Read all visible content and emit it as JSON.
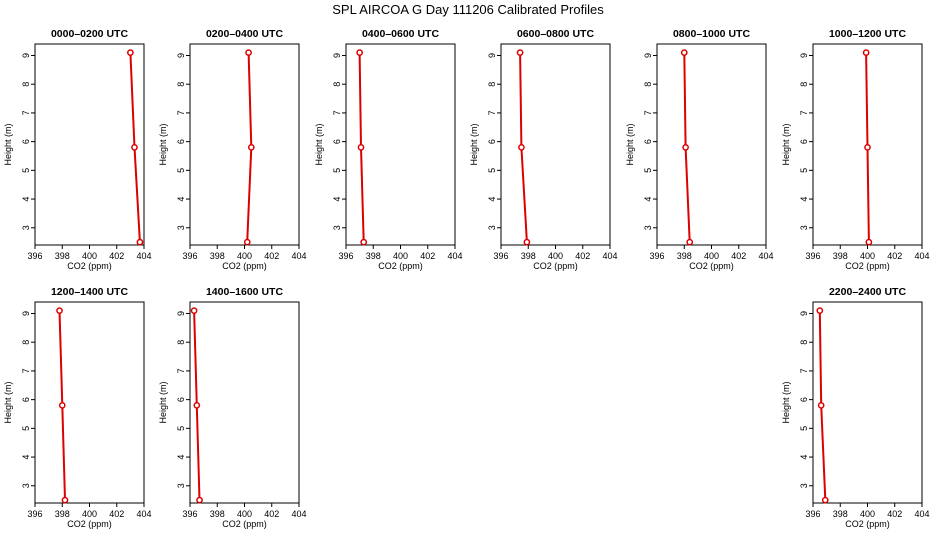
{
  "title": "SPL AIRCOA G  Day 111206  Calibrated Profiles",
  "colors": {
    "series": "#dd0000",
    "axis": "#000000"
  },
  "chart_data": [
    {
      "type": "line",
      "title": "0000–0200 UTC",
      "xlabel": "CO2 (ppm)",
      "ylabel": "Height (m)",
      "xlim": [
        396,
        404
      ],
      "ylim": [
        2.4,
        9.4
      ],
      "xticks": [
        396,
        398,
        400,
        402,
        404
      ],
      "yticks": [
        3,
        4,
        5,
        6,
        7,
        8,
        9
      ],
      "points": [
        {
          "x": 403.7,
          "y": 2.5
        },
        {
          "x": 403.3,
          "y": 5.8
        },
        {
          "x": 403.0,
          "y": 9.1
        }
      ]
    },
    {
      "type": "line",
      "title": "0200–0400 UTC",
      "xlabel": "CO2 (ppm)",
      "ylabel": "Height (m)",
      "xlim": [
        396,
        404
      ],
      "ylim": [
        2.4,
        9.4
      ],
      "xticks": [
        396,
        398,
        400,
        402,
        404
      ],
      "yticks": [
        3,
        4,
        5,
        6,
        7,
        8,
        9
      ],
      "points": [
        {
          "x": 400.2,
          "y": 2.5
        },
        {
          "x": 400.5,
          "y": 5.8
        },
        {
          "x": 400.3,
          "y": 9.1
        }
      ]
    },
    {
      "type": "line",
      "title": "0400–0600 UTC",
      "xlabel": "CO2 (ppm)",
      "ylabel": "Height (m)",
      "xlim": [
        396,
        404
      ],
      "ylim": [
        2.4,
        9.4
      ],
      "xticks": [
        396,
        398,
        400,
        402,
        404
      ],
      "yticks": [
        3,
        4,
        5,
        6,
        7,
        8,
        9
      ],
      "points": [
        {
          "x": 397.3,
          "y": 2.5
        },
        {
          "x": 397.1,
          "y": 5.8
        },
        {
          "x": 397.0,
          "y": 9.1
        }
      ]
    },
    {
      "type": "line",
      "title": "0600–0800 UTC",
      "xlabel": "CO2 (ppm)",
      "ylabel": "Height (m)",
      "xlim": [
        396,
        404
      ],
      "ylim": [
        2.4,
        9.4
      ],
      "xticks": [
        396,
        398,
        400,
        402,
        404
      ],
      "yticks": [
        3,
        4,
        5,
        6,
        7,
        8,
        9
      ],
      "points": [
        {
          "x": 397.9,
          "y": 2.5
        },
        {
          "x": 397.5,
          "y": 5.8
        },
        {
          "x": 397.4,
          "y": 9.1
        }
      ]
    },
    {
      "type": "line",
      "title": "0800–1000 UTC",
      "xlabel": "CO2 (ppm)",
      "ylabel": "Height (m)",
      "xlim": [
        396,
        404
      ],
      "ylim": [
        2.4,
        9.4
      ],
      "xticks": [
        396,
        398,
        400,
        402,
        404
      ],
      "yticks": [
        3,
        4,
        5,
        6,
        7,
        8,
        9
      ],
      "points": [
        {
          "x": 398.4,
          "y": 2.5
        },
        {
          "x": 398.1,
          "y": 5.8
        },
        {
          "x": 398.0,
          "y": 9.1
        }
      ]
    },
    {
      "type": "line",
      "title": "1000–1200 UTC",
      "xlabel": "CO2 (ppm)",
      "ylabel": "Height (m)",
      "xlim": [
        396,
        404
      ],
      "ylim": [
        2.4,
        9.4
      ],
      "xticks": [
        396,
        398,
        400,
        402,
        404
      ],
      "yticks": [
        3,
        4,
        5,
        6,
        7,
        8,
        9
      ],
      "points": [
        {
          "x": 400.1,
          "y": 2.5
        },
        {
          "x": 400.0,
          "y": 5.8
        },
        {
          "x": 399.9,
          "y": 9.1
        }
      ]
    },
    {
      "type": "line",
      "title": "1200–1400 UTC",
      "xlabel": "CO2 (ppm)",
      "ylabel": "Height (m)",
      "xlim": [
        396,
        404
      ],
      "ylim": [
        2.4,
        9.4
      ],
      "xticks": [
        396,
        398,
        400,
        402,
        404
      ],
      "yticks": [
        3,
        4,
        5,
        6,
        7,
        8,
        9
      ],
      "points": [
        {
          "x": 398.2,
          "y": 2.5
        },
        {
          "x": 398.0,
          "y": 5.8
        },
        {
          "x": 397.8,
          "y": 9.1
        }
      ]
    },
    {
      "type": "line",
      "title": "1400–1600 UTC",
      "xlabel": "CO2 (ppm)",
      "ylabel": "Height (m)",
      "xlim": [
        396,
        404
      ],
      "ylim": [
        2.4,
        9.4
      ],
      "xticks": [
        396,
        398,
        400,
        402,
        404
      ],
      "yticks": [
        3,
        4,
        5,
        6,
        7,
        8,
        9
      ],
      "points": [
        {
          "x": 396.7,
          "y": 2.5
        },
        {
          "x": 396.5,
          "y": 5.8
        },
        {
          "x": 396.3,
          "y": 9.1
        }
      ]
    },
    {
      "type": "line",
      "title": "2200–2400 UTC",
      "xlabel": "CO2 (ppm)",
      "ylabel": "Height (m)",
      "xlim": [
        396,
        404
      ],
      "ylim": [
        2.4,
        9.4
      ],
      "xticks": [
        396,
        398,
        400,
        402,
        404
      ],
      "yticks": [
        3,
        4,
        5,
        6,
        7,
        8,
        9
      ],
      "points": [
        {
          "x": 396.9,
          "y": 2.5
        },
        {
          "x": 396.6,
          "y": 5.8
        },
        {
          "x": 396.5,
          "y": 9.1
        }
      ]
    }
  ]
}
